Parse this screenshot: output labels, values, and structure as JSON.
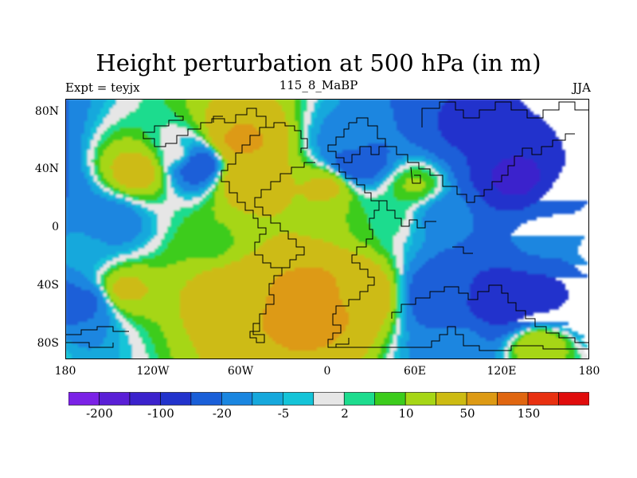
{
  "title": "Height perturbation at 500 hPa (in m)",
  "left_string": "Expt = teyjx",
  "center_string": "115_8_MaBP",
  "right_string": "JJA",
  "chart_data": {
    "type": "heatmap",
    "title": "Height perturbation at 500 hPa (in m)",
    "x_ticks": [
      "180",
      "120W",
      "60W",
      "0",
      "60E",
      "120E",
      "180"
    ],
    "x_tick_values": [
      -180,
      -120,
      -60,
      0,
      60,
      120,
      180
    ],
    "y_ticks": [
      "80N",
      "40N",
      "0",
      "40S",
      "80S"
    ],
    "y_tick_values": [
      80,
      40,
      0,
      -40,
      -80
    ],
    "xlim": [
      -180,
      180
    ],
    "ylim": [
      -90,
      90
    ],
    "contour_levels": [
      -200,
      -150,
      -100,
      -50,
      -20,
      -10,
      -5,
      -2,
      2,
      5,
      10,
      20,
      50,
      100,
      150,
      200
    ],
    "colorbar_labels": [
      "-200",
      "-100",
      "-20",
      "-5",
      "2",
      "10",
      "50",
      "150"
    ],
    "colorbar_label_levels": [
      -200,
      -100,
      -20,
      -5,
      2,
      10,
      50,
      150
    ],
    "colors": [
      "#7b22e6",
      "#5a1fd6",
      "#3b22cc",
      "#2233cc",
      "#1a5fd8",
      "#1a86e0",
      "#16a8dc",
      "#14c4d8",
      "#e6e6e6",
      "#1ddc8e",
      "#3ccc1c",
      "#a6d616",
      "#cdbb12",
      "#dd9a14",
      "#e06610",
      "#e83010",
      "#e00c0c"
    ],
    "field_features": [
      {
        "lon": -10,
        "lat": -50,
        "value": 90
      },
      {
        "lon": -60,
        "lat": -45,
        "value": 45
      },
      {
        "lon": 20,
        "lat": -45,
        "value": 40
      },
      {
        "lon": -165,
        "lat": -50,
        "value": -25
      },
      {
        "lon": -140,
        "lat": -42,
        "value": 25
      },
      {
        "lon": 120,
        "lat": -50,
        "value": -90
      },
      {
        "lon": 150,
        "lat": -45,
        "value": -60
      },
      {
        "lon": 80,
        "lat": -45,
        "value": -40
      },
      {
        "lon": 90,
        "lat": -78,
        "value": -15
      },
      {
        "lon": 145,
        "lat": -80,
        "value": 20
      },
      {
        "lon": 100,
        "lat": 70,
        "value": -60
      },
      {
        "lon": 130,
        "lat": 35,
        "value": -120
      },
      {
        "lon": 170,
        "lat": 20,
        "value": -20
      },
      {
        "lon": 15,
        "lat": 60,
        "value": -15
      },
      {
        "lon": 20,
        "lat": 45,
        "value": -40
      },
      {
        "lon": -90,
        "lat": 45,
        "value": -50
      },
      {
        "lon": -100,
        "lat": 50,
        "value": 5
      },
      {
        "lon": -60,
        "lat": 60,
        "value": 60
      },
      {
        "lon": -55,
        "lat": 35,
        "value": 40
      },
      {
        "lon": -130,
        "lat": 40,
        "value": 30
      },
      {
        "lon": -20,
        "lat": 10,
        "value": 20
      },
      {
        "lon": 0,
        "lat": 30,
        "value": 25
      },
      {
        "lon": 40,
        "lat": 10,
        "value": 5
      },
      {
        "lon": 80,
        "lat": 10,
        "value": -15
      },
      {
        "lon": 150,
        "lat": -5,
        "value": -10
      },
      {
        "lon": -150,
        "lat": 5,
        "value": -18
      },
      {
        "lon": -170,
        "lat": -15,
        "value": -5
      },
      {
        "lon": -80,
        "lat": -10,
        "value": 8
      },
      {
        "lon": 60,
        "lat": 30,
        "value": 12
      }
    ]
  }
}
